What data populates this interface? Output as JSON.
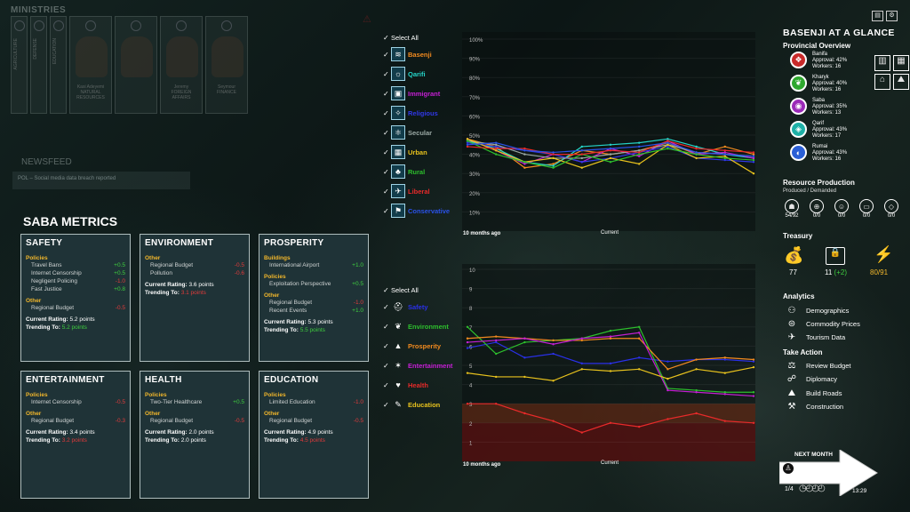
{
  "ministries": {
    "label": "MINISTRIES",
    "slots": [
      {
        "title": "AGRICULTURE"
      },
      {
        "title": "DEFENSE"
      },
      {
        "title": "EDUCATION"
      },
      {
        "name": "Kasi Adeyemi",
        "role": "NATURAL RESOURCES"
      },
      {
        "name": "",
        "role": ""
      },
      {
        "name": "Jeremy",
        "role": "FOREIGN AFFAIRS"
      },
      {
        "name": "Seymour",
        "role": "FINANCE"
      }
    ]
  },
  "newsfeed": {
    "label": "NEWSFEED",
    "item": "POL – Social media data breach reported"
  },
  "metrics": {
    "title": "SABA METRICS",
    "cards": [
      {
        "title": "SAFETY",
        "sections": [
          {
            "label": "Policies",
            "rows": [
              {
                "name": "Travel Bans",
                "val": "+0.5",
                "sign": "pos"
              },
              {
                "name": "Internet Censorship",
                "val": "+0.5",
                "sign": "pos"
              },
              {
                "name": "Negligent Policing",
                "val": "-1.0",
                "sign": "neg"
              },
              {
                "name": "Fast Justice",
                "val": "+0.8",
                "sign": "pos"
              }
            ]
          },
          {
            "label": "Other",
            "rows": [
              {
                "name": "Regional Budget",
                "val": "-0.5",
                "sign": "neg"
              }
            ]
          }
        ],
        "rating": "5.2 points",
        "trending": "5.2 points",
        "trend_sign": "pos"
      },
      {
        "title": "ENVIRONMENT",
        "sections": [
          {
            "label": "Other",
            "rows": [
              {
                "name": "Regional Budget",
                "val": "-0.5",
                "sign": "neg"
              },
              {
                "name": "Pollution",
                "val": "-0.6",
                "sign": "neg"
              }
            ]
          }
        ],
        "rating": "3.6 points",
        "trending": "3.1 points",
        "trend_sign": "neg"
      },
      {
        "title": "PROSPERITY",
        "sections": [
          {
            "label": "Buildings",
            "rows": [
              {
                "name": "International Airport",
                "val": "+1.0",
                "sign": "pos"
              }
            ]
          },
          {
            "label": "Policies",
            "rows": [
              {
                "name": "Exploitation Perspective",
                "val": "+0.5",
                "sign": "pos"
              }
            ]
          },
          {
            "label": "Other",
            "rows": [
              {
                "name": "Regional Budget",
                "val": "-1.0",
                "sign": "neg"
              },
              {
                "name": "Recent Events",
                "val": "+1.0",
                "sign": "pos"
              }
            ]
          }
        ],
        "rating": "5.3 points",
        "trending": "5.5 points",
        "trend_sign": "pos"
      },
      {
        "title": "ENTERTAINMENT",
        "sections": [
          {
            "label": "Policies",
            "rows": [
              {
                "name": "Internet Censorship",
                "val": "-0.5",
                "sign": "neg"
              }
            ]
          },
          {
            "label": "Other",
            "rows": [
              {
                "name": "Regional Budget",
                "val": "-0.3",
                "sign": "neg"
              }
            ]
          }
        ],
        "rating": "3.4 points",
        "trending": "3.2 points",
        "trend_sign": "neg"
      },
      {
        "title": "HEALTH",
        "sections": [
          {
            "label": "Policies",
            "rows": [
              {
                "name": "Two-Tier Healthcare",
                "val": "+0.5",
                "sign": "pos"
              }
            ]
          },
          {
            "label": "Other",
            "rows": [
              {
                "name": "Regional Budget",
                "val": "-0.5",
                "sign": "neg"
              }
            ]
          }
        ],
        "rating": "2.0 points",
        "trending": "2.0 points",
        "trend_sign": "neutral"
      },
      {
        "title": "EDUCATION",
        "sections": [
          {
            "label": "Policies",
            "rows": [
              {
                "name": "Limited Education",
                "val": "-1.0",
                "sign": "neg"
              }
            ]
          },
          {
            "label": "Other",
            "rows": [
              {
                "name": "Regional Budget",
                "val": "-0.5",
                "sign": "neg"
              }
            ]
          }
        ],
        "rating": "4.9 points",
        "trending": "4.5 points",
        "trend_sign": "neg"
      }
    ],
    "rating_label": "Current Rating:",
    "trending_label": "Trending To:"
  },
  "approval_legend": {
    "select_all": "Select All",
    "items": [
      {
        "label": "Basenji",
        "color": "#f28a1f",
        "icon": "stripes-icon",
        "glyph": "≋"
      },
      {
        "label": "Qarifi",
        "color": "#25d4c8",
        "icon": "sun-icon",
        "glyph": "☼"
      },
      {
        "label": "Immigrant",
        "color": "#c51fd4",
        "icon": "luggage-icon",
        "glyph": "▣"
      },
      {
        "label": "Religious",
        "color": "#3038e8",
        "icon": "wings-icon",
        "glyph": "✧"
      },
      {
        "label": "Secular",
        "color": "#9aa8a4",
        "icon": "atom-icon",
        "glyph": "⚛"
      },
      {
        "label": "Urban",
        "color": "#e8c21d",
        "icon": "building-icon",
        "glyph": "▦"
      },
      {
        "label": "Rural",
        "color": "#2dbf2d",
        "icon": "farmer-icon",
        "glyph": "♣"
      },
      {
        "label": "Liberal",
        "color": "#e82a2a",
        "icon": "bird-icon",
        "glyph": "✈"
      },
      {
        "label": "Conservative",
        "color": "#2a52e8",
        "icon": "flag-icon",
        "glyph": "⚑"
      }
    ]
  },
  "metric_legend": {
    "select_all": "Select All",
    "items": [
      {
        "label": "Safety",
        "color": "#2a30e8",
        "icon": "police-icon",
        "glyph": "⛑"
      },
      {
        "label": "Environment",
        "color": "#2dbf2d",
        "icon": "leaf-icon",
        "glyph": "❦"
      },
      {
        "label": "Prosperity",
        "color": "#f28a1f",
        "icon": "chart-icon",
        "glyph": "▲"
      },
      {
        "label": "Entertainment",
        "color": "#c51fd4",
        "icon": "person-icon",
        "glyph": "✶"
      },
      {
        "label": "Health",
        "color": "#e82a2a",
        "icon": "heart-icon",
        "glyph": "♥"
      },
      {
        "label": "Education",
        "color": "#e8c21d",
        "icon": "cap-icon",
        "glyph": "✎"
      }
    ]
  },
  "chart_data": [
    {
      "type": "line",
      "xlabel_start": "10 months ago",
      "xlabel_end": "Current",
      "y_ticks": [
        "100%",
        "90%",
        "80%",
        "70%",
        "60%",
        "50%",
        "40%",
        "30%",
        "20%",
        "10%"
      ],
      "ylim": [
        0,
        100
      ],
      "x": [
        0,
        1,
        2,
        3,
        4,
        5,
        6,
        7,
        8,
        9,
        10
      ],
      "series": [
        {
          "name": "Basenji",
          "color": "#f28a1f",
          "values": [
            48,
            44,
            33,
            35,
            42,
            40,
            42,
            46,
            40,
            44,
            40
          ]
        },
        {
          "name": "Qarifi",
          "color": "#25d4c8",
          "values": [
            47,
            43,
            36,
            34,
            44,
            45,
            46,
            48,
            44,
            40,
            38
          ]
        },
        {
          "name": "Immigrant",
          "color": "#c51fd4",
          "values": [
            48,
            42,
            35,
            40,
            36,
            43,
            39,
            47,
            40,
            41,
            38
          ]
        },
        {
          "name": "Religious",
          "color": "#3038e8",
          "values": [
            46,
            44,
            42,
            40,
            36,
            38,
            41,
            44,
            38,
            37,
            36
          ]
        },
        {
          "name": "Secular",
          "color": "#9aa8a4",
          "values": [
            47,
            45,
            40,
            38,
            38,
            40,
            42,
            45,
            41,
            40,
            39
          ]
        },
        {
          "name": "Urban",
          "color": "#e8c21d",
          "values": [
            48,
            42,
            36,
            38,
            33,
            38,
            35,
            45,
            38,
            39,
            30
          ]
        },
        {
          "name": "Rural",
          "color": "#2dbf2d",
          "values": [
            47,
            40,
            36,
            33,
            40,
            36,
            40,
            43,
            40,
            38,
            37
          ]
        },
        {
          "name": "Liberal",
          "color": "#e82a2a",
          "values": [
            44,
            43,
            43,
            40,
            40,
            42,
            41,
            47,
            43,
            42,
            41
          ]
        },
        {
          "name": "Conservative",
          "color": "#2a52e8",
          "values": [
            45,
            46,
            42,
            41,
            42,
            43,
            44,
            46,
            41,
            40,
            39
          ]
        }
      ]
    },
    {
      "type": "line",
      "xlabel_start": "10 months ago",
      "xlabel_end": "Current",
      "y_ticks": [
        "10",
        "9",
        "8",
        "7",
        "6",
        "5",
        "4",
        "3",
        "2",
        "1"
      ],
      "ylim": [
        0,
        10
      ],
      "x": [
        0,
        1,
        2,
        3,
        4,
        5,
        6,
        7,
        8,
        9,
        10
      ],
      "series": [
        {
          "name": "Safety",
          "color": "#2a30e8",
          "values": [
            5.9,
            6.2,
            5.4,
            5.6,
            5.1,
            5.1,
            5.4,
            5.2,
            5.3,
            5.3,
            5.2
          ]
        },
        {
          "name": "Environment",
          "color": "#2dbf2d",
          "values": [
            7.0,
            5.6,
            6.2,
            6.3,
            6.4,
            6.8,
            7.0,
            3.8,
            3.7,
            3.6,
            3.6
          ]
        },
        {
          "name": "Prosperity",
          "color": "#f28a1f",
          "values": [
            6.4,
            6.5,
            6.4,
            6.3,
            6.3,
            6.4,
            6.4,
            4.8,
            5.3,
            5.4,
            5.3
          ]
        },
        {
          "name": "Entertainment",
          "color": "#c51fd4",
          "values": [
            6.2,
            6.3,
            6.4,
            6.1,
            6.4,
            6.5,
            6.7,
            3.7,
            3.6,
            3.5,
            3.4
          ]
        },
        {
          "name": "Health",
          "color": "#e82a2a",
          "values": [
            3.0,
            3.0,
            2.5,
            2.1,
            1.5,
            2.0,
            1.8,
            2.2,
            2.5,
            2.1,
            2.0
          ]
        },
        {
          "name": "Education",
          "color": "#e8c21d",
          "values": [
            4.6,
            4.4,
            4.4,
            4.2,
            4.8,
            4.7,
            4.8,
            4.3,
            4.8,
            4.6,
            4.9
          ]
        }
      ]
    }
  ],
  "glance": {
    "title": "BASENJI AT A GLANCE",
    "provincial_overview": "Provincial Overview",
    "provinces": [
      {
        "name": "Banifa",
        "approval": "Approval: 42%",
        "workers": "Workers: 16",
        "color": "#c92a2a",
        "icon": "bird-icon",
        "glyph": "❖"
      },
      {
        "name": "Kharyk",
        "approval": "Approval: 40%",
        "workers": "Workers: 16",
        "color": "#2ea82e",
        "icon": "leaf-icon",
        "glyph": "❦"
      },
      {
        "name": "Saba",
        "approval": "Approval: 35%",
        "workers": "Workers: 13",
        "color": "#9b2ab8",
        "icon": "mask-icon",
        "glyph": "◉"
      },
      {
        "name": "Qarif",
        "approval": "Approval: 43%",
        "workers": "Workers: 17",
        "color": "#1eb0a6",
        "icon": "drop-icon",
        "glyph": "◈"
      },
      {
        "name": "Rumai",
        "approval": "Approval: 43%",
        "workers": "Workers: 16",
        "color": "#2a5fd6",
        "icon": "wave-icon",
        "glyph": "◐"
      }
    ],
    "resource_title": "Resource Production",
    "resource_sub": "Produced / Demanded",
    "resources": [
      {
        "icon": "worker-icon",
        "glyph": "☗",
        "val": "54/92"
      },
      {
        "icon": "food-icon",
        "glyph": "⊕",
        "val": "0/0"
      },
      {
        "icon": "people-icon",
        "glyph": "☺",
        "val": "0/0"
      },
      {
        "icon": "tv-icon",
        "glyph": "▭",
        "val": "0/0"
      },
      {
        "icon": "gem-icon",
        "glyph": "◇",
        "val": "0/0"
      }
    ],
    "treasury_title": "Treasury",
    "treasury": {
      "money": "77",
      "cards": "11",
      "cards_delta": "(+2)",
      "energy": "80/91"
    },
    "analytics_title": "Analytics",
    "analytics": [
      {
        "label": "Demographics",
        "icon": "demographics-icon",
        "glyph": "⚇"
      },
      {
        "label": "Commodity Prices",
        "icon": "commodity-icon",
        "glyph": "⊜"
      },
      {
        "label": "Tourism Data",
        "icon": "plane-icon",
        "glyph": "✈"
      }
    ],
    "action_title": "Take Action",
    "actions": [
      {
        "label": "Review Budget",
        "icon": "budget-icon",
        "glyph": "⚖"
      },
      {
        "label": "Diplomacy",
        "icon": "handshake-icon",
        "glyph": "☍"
      },
      {
        "label": "Build Roads",
        "icon": "road-icon",
        "glyph": "⛰"
      },
      {
        "label": "Construction",
        "icon": "crane-icon",
        "glyph": "⚒"
      }
    ],
    "next_month": "NEXT MONTH",
    "turn": "1/4",
    "time": "13:29"
  }
}
